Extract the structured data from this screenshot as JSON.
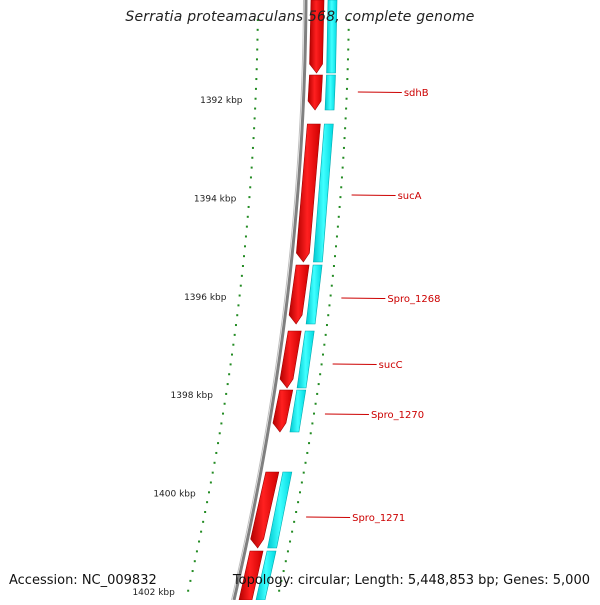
{
  "title": "Serratia proteamaculans 568, complete genome",
  "footer": {
    "accession": "Accession: NC_009832",
    "summary": "Topology: circular; Length: 5,448,853 bp; Genes: 5,000"
  },
  "colors": {
    "forward_gene": "#ff0000",
    "reverse_gene": "#00ffff",
    "backbone": "#808080",
    "tick": "#228b22",
    "label": "#cc0000"
  },
  "scale": {
    "labels": [
      {
        "kbp": 1392,
        "text": "1392 kbp"
      },
      {
        "kbp": 1394,
        "text": "1394 kbp"
      },
      {
        "kbp": 1396,
        "text": "1396 kbp"
      },
      {
        "kbp": 1398,
        "text": "1398 kbp"
      },
      {
        "kbp": 1400,
        "text": "1400 kbp"
      },
      {
        "kbp": 1402,
        "text": "1402 kbp"
      }
    ]
  },
  "genes": [
    {
      "name": "sdhB"
    },
    {
      "name": "sucA"
    },
    {
      "name": "Spro_1268"
    },
    {
      "name": "sucC"
    },
    {
      "name": "Spro_1270"
    },
    {
      "name": "Spro_1271"
    }
  ]
}
